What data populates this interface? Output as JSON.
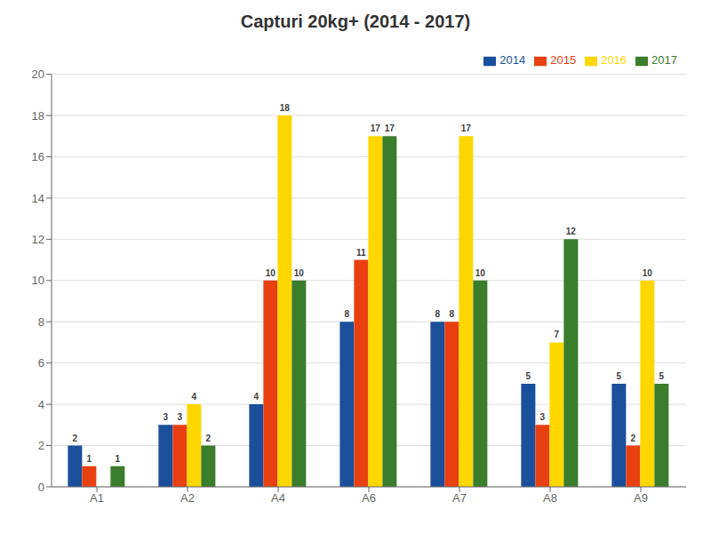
{
  "chart_data": {
    "type": "bar",
    "title": "Capturi 20kg+ (2014 - 2017)",
    "categories": [
      "A1",
      "A2",
      "A4",
      "A6",
      "A7",
      "A8",
      "A9"
    ],
    "series": [
      {
        "name": "2014",
        "color": "#1a4f9c",
        "values": [
          2,
          3,
          4,
          8,
          8,
          5,
          5
        ]
      },
      {
        "name": "2015",
        "color": "#e84010",
        "values": [
          1,
          3,
          10,
          11,
          8,
          3,
          2
        ]
      },
      {
        "name": "2016",
        "color": "#ffd700",
        "values": [
          0,
          4,
          18,
          17,
          17,
          7,
          10
        ]
      },
      {
        "name": "2017",
        "color": "#3a7d2c",
        "values": [
          1,
          2,
          10,
          17,
          10,
          12,
          5
        ]
      }
    ],
    "ylim": [
      0,
      20
    ],
    "yticks": [
      0,
      2,
      4,
      6,
      8,
      10,
      12,
      14,
      16,
      18,
      20
    ],
    "grid": true,
    "legend": "upper right",
    "data_labels": true
  }
}
